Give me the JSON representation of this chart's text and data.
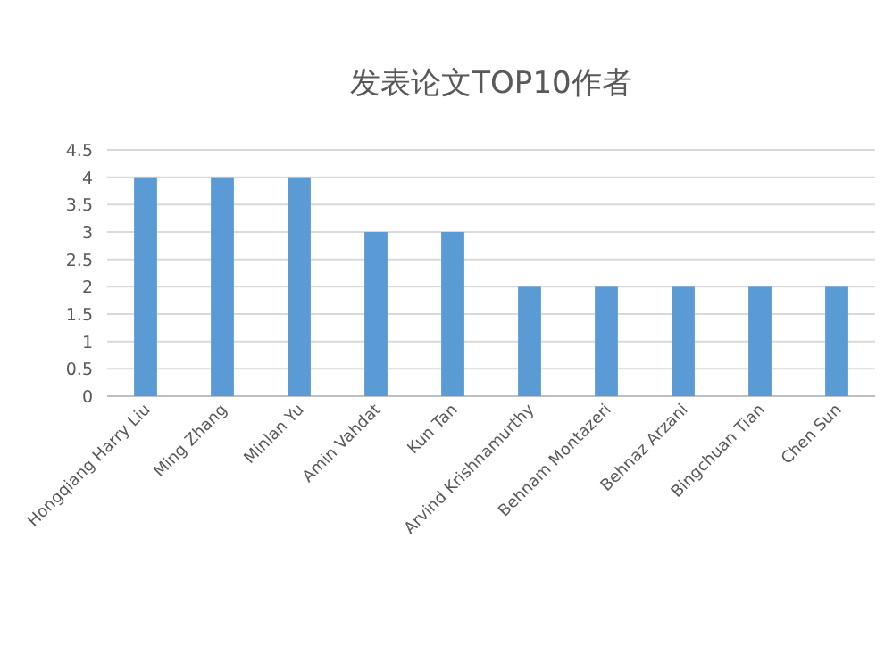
{
  "chart_data": {
    "type": "bar",
    "title": "发表论文TOP10作者",
    "categories": [
      "Hongqiang Harry Liu",
      "Ming Zhang",
      "Minlan Yu",
      "Amin Vahdat",
      "Kun Tan",
      "Arvind Krishnamurthy",
      "Behnam Montazeri",
      "Behnaz Arzani",
      "Bingchuan Tian",
      "Chen Sun"
    ],
    "values": [
      4,
      4,
      4,
      3,
      3,
      2,
      2,
      2,
      2,
      2
    ],
    "color": "#5b9bd5",
    "ylim": [
      0,
      4.5
    ],
    "yticks": [
      0,
      0.5,
      1,
      1.5,
      2,
      2.5,
      3,
      3.5,
      4,
      4.5
    ],
    "grid": "y"
  }
}
